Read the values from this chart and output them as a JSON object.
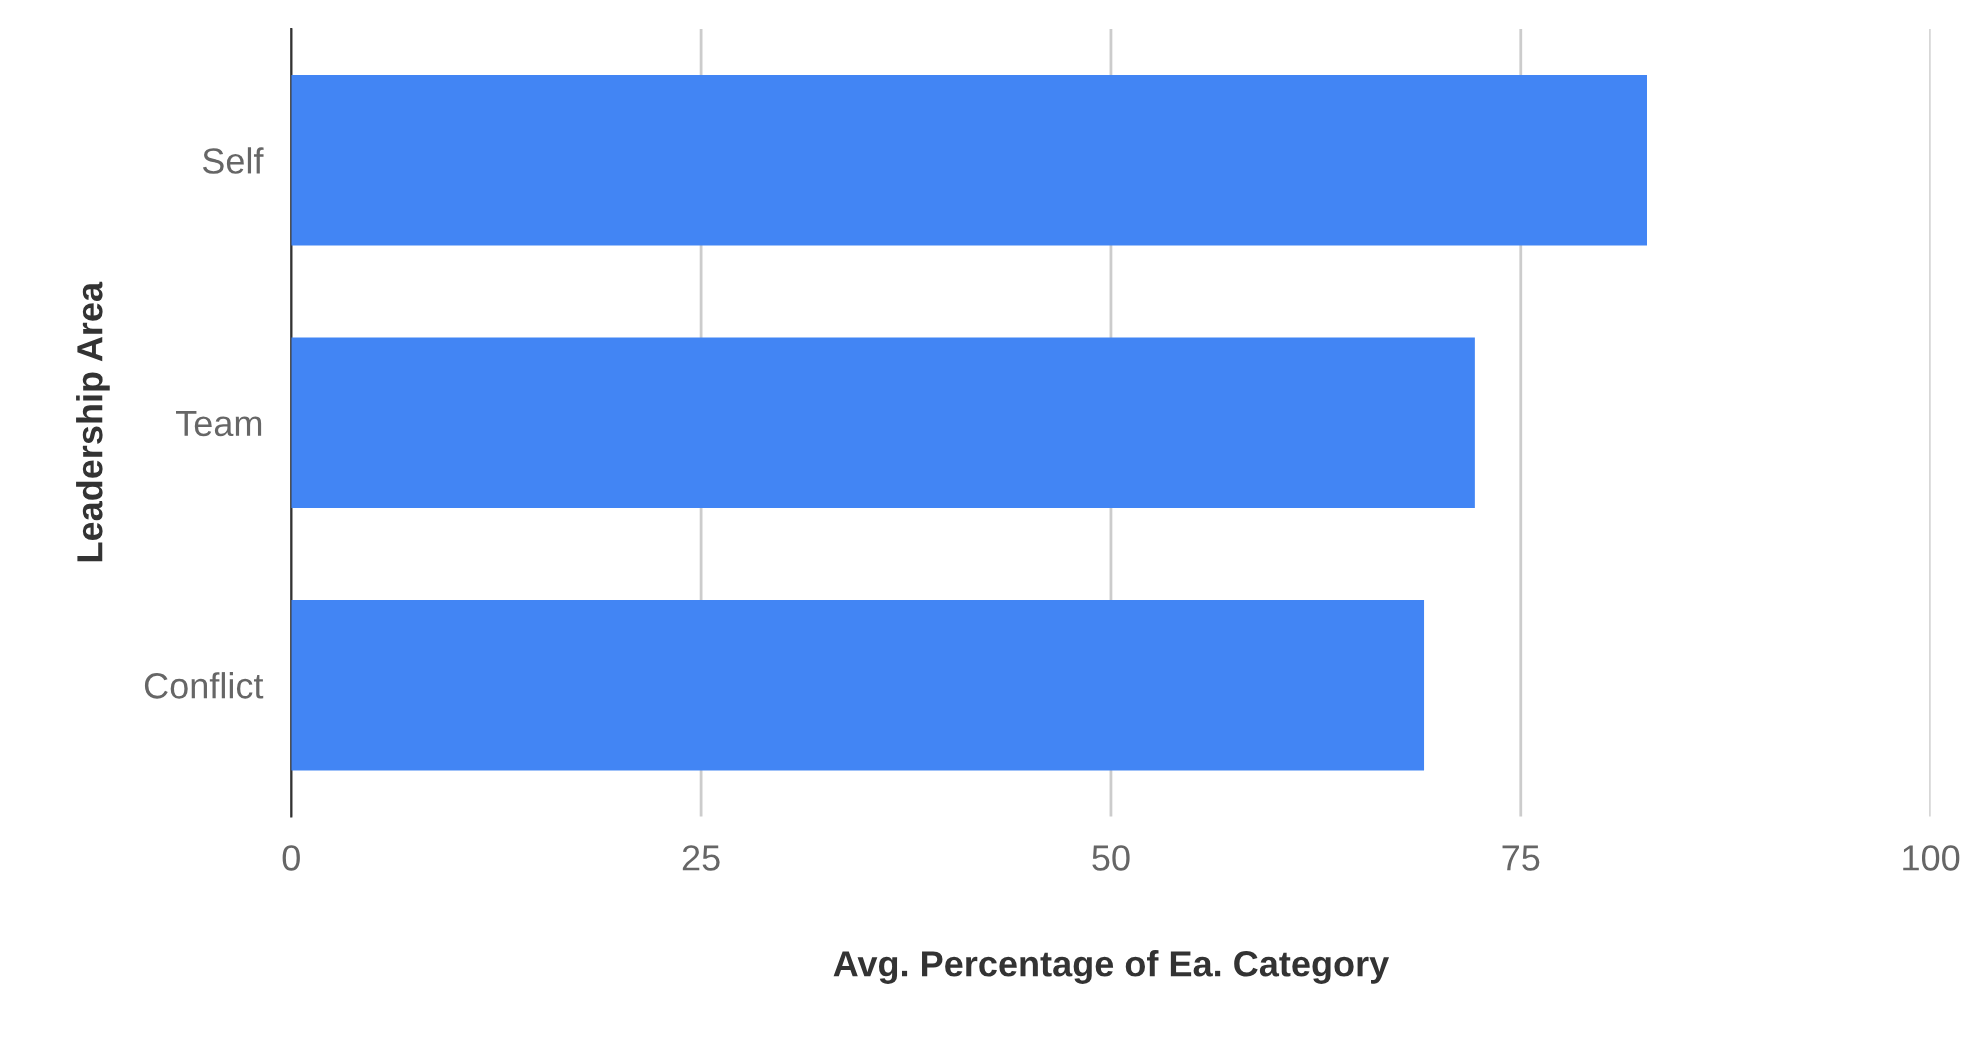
{
  "chart_data": {
    "type": "bar",
    "orientation": "horizontal",
    "xlabel": "Avg. Percentage of Ea. Category",
    "ylabel": "Leadership Area",
    "categories": [
      "Self",
      "Team",
      "Conflict"
    ],
    "values": [
      82.7,
      72.2,
      69.1
    ],
    "color": "#4285f4",
    "xlim": [
      0,
      100
    ],
    "xticks": [
      0,
      25,
      50,
      75,
      100
    ],
    "grid": "x",
    "legend": false
  }
}
